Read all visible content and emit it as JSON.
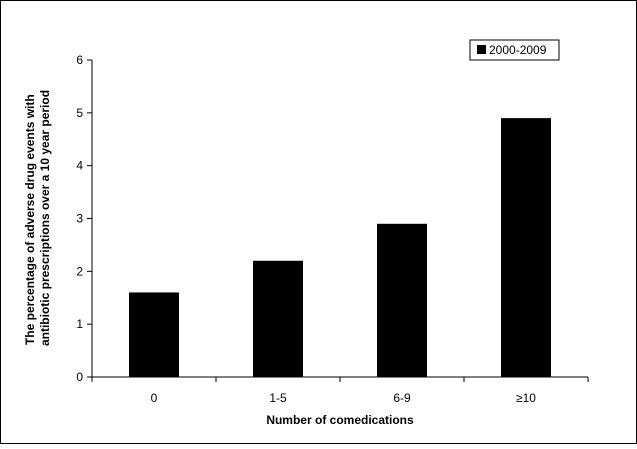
{
  "chart_data": {
    "type": "bar",
    "title": "",
    "xlabel": "Number of comedications",
    "ylabel_lines": [
      "The percentage of adverse drug events with",
      "antibiotic prescriptions over a 10 year period"
    ],
    "categories": [
      "0",
      "1-5",
      "6-9",
      "≥10"
    ],
    "series": [
      {
        "name": "2000-2009",
        "values": [
          1.6,
          2.2,
          2.9,
          4.9
        ],
        "color": "#000000"
      }
    ],
    "ylim": [
      0,
      6
    ],
    "yticks": [
      "0",
      "1",
      "2",
      "3",
      "4",
      "5",
      "6"
    ],
    "grid": false,
    "legend_position": "top-right"
  }
}
